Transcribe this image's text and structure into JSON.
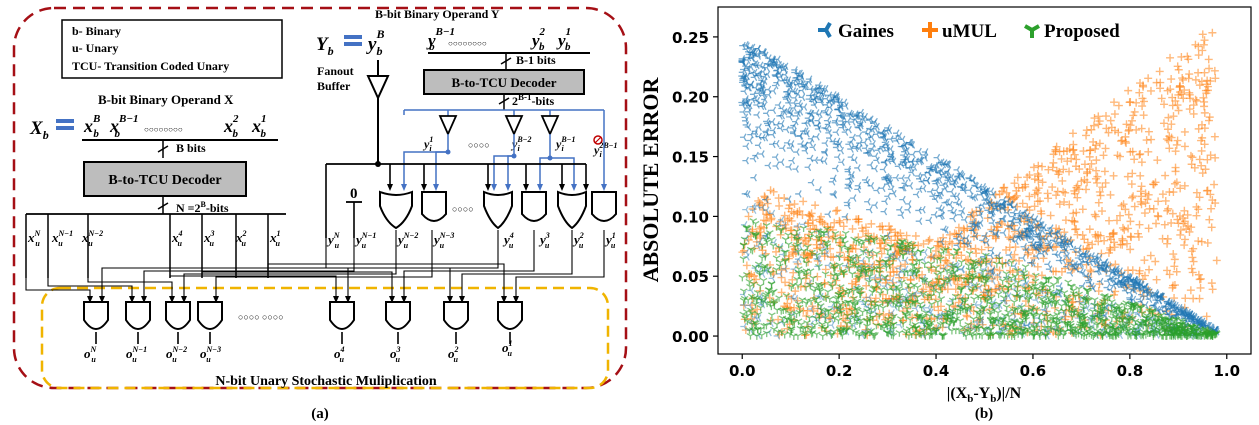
{
  "panel_a": {
    "legend": [
      "b- Binary",
      "u- Unary",
      "TCU- Transition Coded Unary"
    ],
    "operand_y_title": "B-bit Binary Operand Y",
    "operand_y_sym": "Y",
    "operand_y_sub": "b",
    "operand_y_eq_base": "y",
    "operand_y_eq_sub": "b",
    "operand_y_eq_sup": "B",
    "y_bits_str": "y",
    "y_bits_first_sup": "B−1",
    "y_bits_first_sub": "b",
    "y_bits_dots": "○○○○○○○○",
    "y_bits_mid": "y",
    "y_bits_mid_sup": "2",
    "y_bits_mid_sub": "b",
    "y_bits_last": "y",
    "y_bits_last_sup": "1",
    "y_bits_last_sub": "b",
    "b_minus_1_bits": "B-1 bits",
    "decoder_y": "B-to-TCU Decoder",
    "fanout_buffer": "Fanout\nBuffer",
    "fanout_line1": "Fanout",
    "fanout_line2": "Buffer",
    "two_pow_bits": "2",
    "two_pow_sup": "B-1",
    "two_pow_suffix": "-bits",
    "operand_x_title": "B-bit Binary Operand X",
    "operand_x_sym": "X",
    "operand_x_sub": "b",
    "x_bits_first": "x",
    "x_bits_first_sup": "B",
    "x_bits_second_sup": "B−1",
    "x_bits_dots": "○○○○○○○○",
    "x_bits_mid_sup": "2",
    "x_bits_last_sup": "1",
    "x_bits_sub": "b",
    "b_bits": "B bits",
    "decoder_x": "B-to-TCU Decoder",
    "n_bits": "N =2",
    "n_bits_sup": "B",
    "n_bits_suffix": "-bits",
    "zero": "0",
    "dots_short": "○○○○",
    "dots_long": "○○○○  ○○○○",
    "buf_labels": [
      {
        "base": "y",
        "sup": "1",
        "sub": "i"
      },
      {
        "base": "y",
        "sup": "B−2",
        "sub": "i"
      },
      {
        "base": "y",
        "sup": "B−1",
        "sub": "i"
      },
      {
        "base": "y",
        "sup": "2B−1",
        "sub": "i"
      }
    ],
    "x_inputs": [
      {
        "base": "x",
        "sup": "N",
        "sub": "u"
      },
      {
        "base": "x",
        "sup": "N−1",
        "sub": "u"
      },
      {
        "base": "x",
        "sup": "N−2",
        "sub": "u"
      },
      {
        "base": "x",
        "sup": "4",
        "sub": "u"
      },
      {
        "base": "x",
        "sup": "3",
        "sub": "u"
      },
      {
        "base": "x",
        "sup": "2",
        "sub": "u"
      },
      {
        "base": "x",
        "sup": "1",
        "sub": "u"
      }
    ],
    "y_inputs": [
      {
        "base": "y",
        "sup": "N",
        "sub": "u"
      },
      {
        "base": "y",
        "sup": "N−1",
        "sub": "u"
      },
      {
        "base": "y",
        "sup": "N−2",
        "sub": "u"
      },
      {
        "base": "y",
        "sup": "N−3",
        "sub": "u"
      },
      {
        "base": "y",
        "sup": "4",
        "sub": "u"
      },
      {
        "base": "y",
        "sup": "3",
        "sub": "u"
      },
      {
        "base": "y",
        "sup": "2",
        "sub": "u"
      },
      {
        "base": "y",
        "sup": "1",
        "sub": "u"
      }
    ],
    "outputs": [
      {
        "base": "o",
        "sup": "N",
        "sub": "u"
      },
      {
        "base": "o",
        "sup": "N−1",
        "sub": "u"
      },
      {
        "base": "o",
        "sup": "N−2",
        "sub": "u"
      },
      {
        "base": "o",
        "sup": "N−3",
        "sub": "u"
      },
      {
        "base": "o",
        "sup": "4",
        "sub": "u"
      },
      {
        "base": "o",
        "sup": "3",
        "sub": "u"
      },
      {
        "base": "o",
        "sup": "2",
        "sub": "u"
      },
      {
        "base": "o",
        "sup": "1",
        "sub": "u"
      }
    ],
    "multiplication_label": "N-bit Unary Stochastic Muliplication",
    "caption": "(a)"
  },
  "panel_b": {
    "caption": "(b)",
    "chart_data": {
      "type": "scatter",
      "title": "",
      "xlabel": "|(Xb-Yb)|/N",
      "xlabel_main": "|(X",
      "xlabel_sub1": "b",
      "xlabel_mid": "-Y",
      "xlabel_sub2": "b",
      "xlabel_end": ")|/N",
      "ylabel": "ABSOLUTE ERROR",
      "xlim": [
        -0.05,
        1.05
      ],
      "ylim": [
        -0.015,
        0.275
      ],
      "xticks": [
        "0.0",
        "0.2",
        "0.4",
        "0.6",
        "0.8",
        "1.0"
      ],
      "xtick_values": [
        0,
        0.2,
        0.4,
        0.6,
        0.8,
        1.0
      ],
      "yticks": [
        "0.00",
        "0.05",
        "0.10",
        "0.15",
        "0.20",
        "0.25"
      ],
      "ytick_values": [
        0,
        0.05,
        0.1,
        0.15,
        0.2,
        0.25
      ],
      "legend_position": "top",
      "series": [
        {
          "name": "Gaines",
          "color": "#1f77b4",
          "marker": "tri-left",
          "envelope_max": [
            [
              0,
              0.25
            ],
            [
              0.5,
              0.125
            ],
            [
              1.0,
              0.0
            ]
          ]
        },
        {
          "name": "uMUL",
          "color": "#ff7f0e",
          "marker": "plus",
          "envelope_max": [
            [
              0,
              0.13
            ],
            [
              0.4,
              0.08
            ],
            [
              1.0,
              0.27
            ]
          ]
        },
        {
          "name": "Proposed",
          "color": "#2ca02c",
          "marker": "tri-down",
          "envelope_max": [
            [
              0,
              0.1
            ],
            [
              0.5,
              0.07
            ],
            [
              1.0,
              0.0
            ]
          ]
        }
      ]
    }
  }
}
